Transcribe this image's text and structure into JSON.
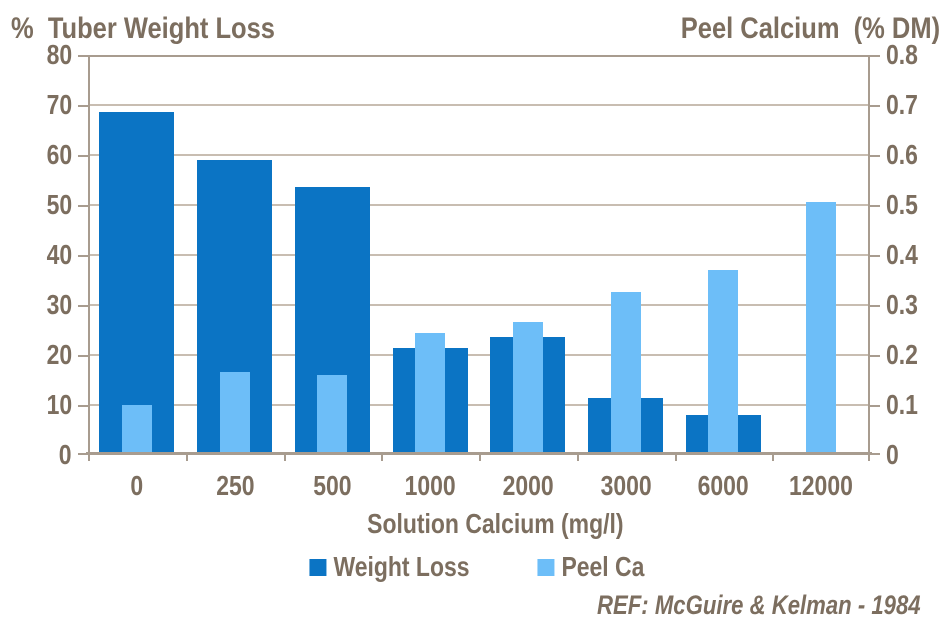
{
  "chart_data": {
    "type": "bar",
    "categories": [
      "0",
      "250",
      "500",
      "1000",
      "2000",
      "3000",
      "6000",
      "12000"
    ],
    "series": [
      {
        "name": "Weight Loss",
        "axis": "left",
        "color": "#0b74c4",
        "values": [
          68.5,
          59,
          53.5,
          21.3,
          23.5,
          11.5,
          8,
          null
        ]
      },
      {
        "name": "Peel Ca",
        "axis": "right",
        "color": "#6dbef8",
        "values": [
          0.1,
          0.165,
          0.16,
          0.245,
          0.265,
          0.325,
          0.37,
          0.505
        ]
      }
    ],
    "xlabel": "Solution Calcium (mg/l)",
    "left_axis": {
      "title": "%  Tuber Weight Loss",
      "min": 0,
      "max": 80,
      "ticks": [
        "80",
        "70",
        "60",
        "50",
        "40",
        "30",
        "20",
        "10",
        "0"
      ]
    },
    "right_axis": {
      "title": "Peel Calcium  (% DM)",
      "min": 0,
      "max": 0.8,
      "ticks": [
        "0.8",
        "0.7",
        "0.6",
        "0.5",
        "0.4",
        "0.3",
        "0.2",
        "0.1",
        "0"
      ]
    },
    "grid": true,
    "legend_position": "bottom",
    "reference": "REF: McGuire & Kelman - 1984"
  },
  "colors": {
    "bar_dark": "#0b74c4",
    "bar_light": "#6dbef8",
    "text": "#7c6e5f",
    "gridline": "#c8bdb1",
    "axis": "#a89c8f"
  }
}
